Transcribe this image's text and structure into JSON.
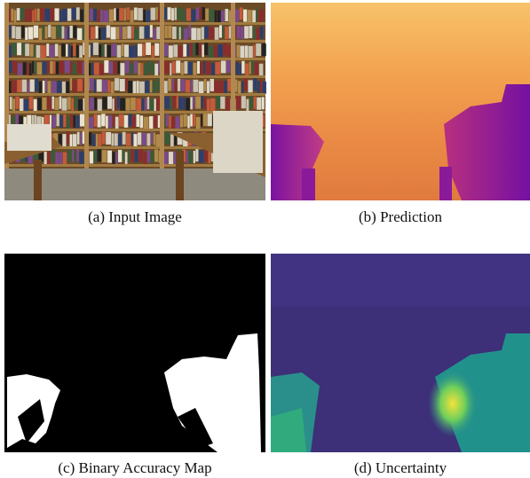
{
  "figure": {
    "panels": [
      {
        "caption": "(a) Input Image"
      },
      {
        "caption": "(b) Prediction"
      },
      {
        "caption": "(c) Binary Accuracy Map"
      },
      {
        "caption": "(d) Uncertainty"
      }
    ]
  }
}
